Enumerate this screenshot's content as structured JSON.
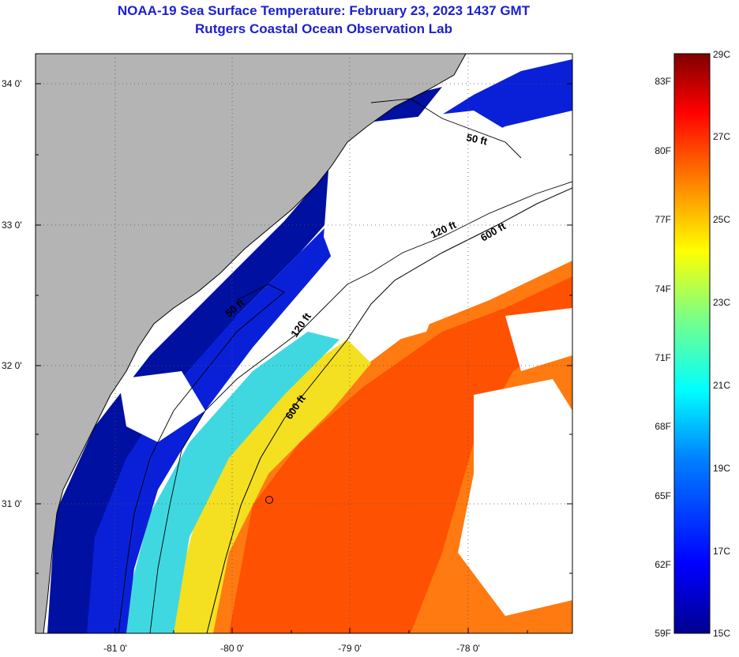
{
  "header": {
    "title": "NOAA-19 Sea Surface Temperature:  February 23, 2023 1437 GMT",
    "subtitle": "Rutgers Coastal Ocean Observation Lab"
  },
  "map": {
    "lat_labels": [
      "34 0'",
      "33 0'",
      "32 0'",
      "31 0'"
    ],
    "lon_labels": [
      "-81 0'",
      "-80 0'",
      "-79 0'",
      "-78 0'"
    ],
    "contours": [
      {
        "label": "50 ft"
      },
      {
        "label": "120 ft"
      },
      {
        "label": "600 ft"
      },
      {
        "label": "50 ft"
      },
      {
        "label": "120 ft"
      },
      {
        "label": "600 ft"
      }
    ],
    "colors": {
      "land": "#b4b4b4",
      "cloud": "#ffffff",
      "coastline": "#000000"
    }
  },
  "colorbar": {
    "fahrenheit": [
      "83F",
      "80F",
      "77F",
      "74F",
      "71F",
      "68F",
      "65F",
      "62F",
      "59F"
    ],
    "celsius": [
      "29C",
      "27C",
      "25C",
      "23C",
      "21C",
      "19C",
      "17C",
      "15C"
    ],
    "colors": [
      "#00008f",
      "#0000ff",
      "#0080ff",
      "#00ffff",
      "#80ff80",
      "#ffff00",
      "#ff8000",
      "#ff0000",
      "#800000"
    ]
  }
}
